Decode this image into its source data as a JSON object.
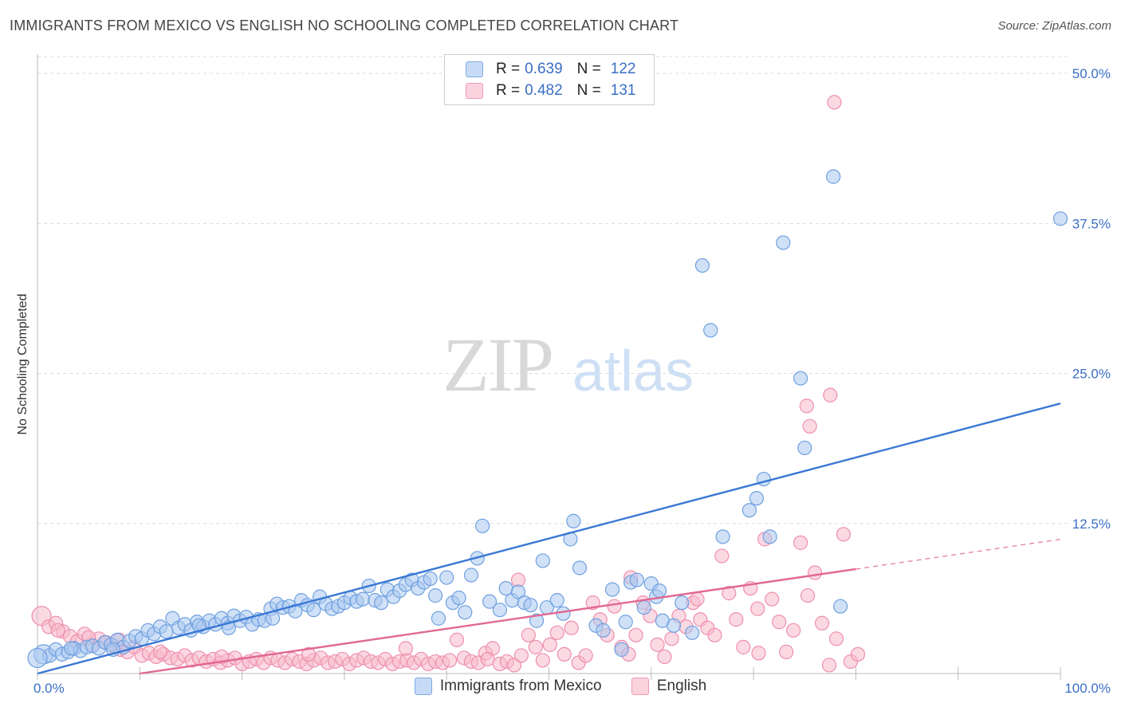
{
  "header": {
    "title": "IMMIGRANTS FROM MEXICO VS ENGLISH NO SCHOOLING COMPLETED CORRELATION CHART",
    "source": "Source: ZipAtlas.com"
  },
  "watermark": {
    "zip": "ZIP",
    "atlas": "atlas"
  },
  "stats_legend": {
    "rows": [
      {
        "r_label": "R =",
        "r_value": "0.639",
        "n_label": "N =",
        "n_value": "122",
        "color": "#a9c8f0"
      },
      {
        "r_label": "R =",
        "r_value": "0.482",
        "n_label": "N =",
        "n_value": "131",
        "color": "#f7b9cc"
      }
    ]
  },
  "chart_data": {
    "type": "scatter",
    "title": "IMMIGRANTS FROM MEXICO VS ENGLISH NO SCHOOLING COMPLETED CORRELATION CHART",
    "ylabel": "No Schooling Completed",
    "xlabel": "",
    "xlim": [
      0,
      100
    ],
    "ylim": [
      0,
      52
    ],
    "x_tick_labels": [
      "0.0%",
      "100.0%"
    ],
    "y_tick_labels": [
      "12.5%",
      "25.0%",
      "37.5%",
      "50.0%"
    ],
    "y_ticks": [
      12.5,
      25,
      37.5,
      50
    ],
    "grid": true,
    "legend_position": "bottom",
    "series": [
      {
        "name": "Immigrants from Mexico",
        "color": "#6fa0e0",
        "fill": "#a9c8f0",
        "trend": {
          "x": [
            0,
            100
          ],
          "y": [
            0,
            22.5
          ],
          "color": "#3a78d4",
          "dashed_beyond": null
        },
        "points": [
          [
            0.6,
            1.6
          ],
          [
            1.2,
            1.5
          ],
          [
            1.8,
            2.0
          ],
          [
            2.4,
            1.6
          ],
          [
            3.0,
            1.8
          ],
          [
            3.6,
            2.1
          ],
          [
            4.2,
            1.9
          ],
          [
            4.8,
            2.2
          ],
          [
            5.4,
            2.3
          ],
          [
            6.0,
            2.1
          ],
          [
            6.6,
            2.6
          ],
          [
            7.2,
            2.4
          ],
          [
            7.8,
            2.8
          ],
          [
            8.4,
            2.2
          ],
          [
            9.0,
            2.7
          ],
          [
            9.6,
            3.1
          ],
          [
            10.2,
            2.9
          ],
          [
            10.8,
            3.6
          ],
          [
            11.4,
            3.3
          ],
          [
            12.0,
            3.9
          ],
          [
            12.6,
            3.5
          ],
          [
            13.2,
            4.6
          ],
          [
            13.8,
            3.8
          ],
          [
            14.4,
            4.1
          ],
          [
            15.0,
            3.6
          ],
          [
            15.6,
            4.3
          ],
          [
            16.2,
            3.9
          ],
          [
            16.8,
            4.4
          ],
          [
            17.4,
            4.1
          ],
          [
            18.0,
            4.6
          ],
          [
            18.6,
            4.2
          ],
          [
            19.2,
            4.8
          ],
          [
            19.8,
            4.4
          ],
          [
            20.4,
            4.7
          ],
          [
            21.0,
            4.1
          ],
          [
            21.6,
            4.5
          ],
          [
            22.2,
            4.4
          ],
          [
            22.8,
            5.4
          ],
          [
            23.4,
            5.8
          ],
          [
            24.0,
            5.5
          ],
          [
            24.6,
            5.6
          ],
          [
            25.2,
            5.2
          ],
          [
            25.8,
            6.1
          ],
          [
            26.4,
            5.7
          ],
          [
            27.0,
            5.3
          ],
          [
            27.6,
            6.4
          ],
          [
            28.2,
            5.8
          ],
          [
            28.8,
            5.4
          ],
          [
            29.4,
            5.6
          ],
          [
            30.0,
            5.9
          ],
          [
            30.6,
            6.3
          ],
          [
            31.2,
            6.0
          ],
          [
            31.8,
            6.2
          ],
          [
            32.4,
            7.3
          ],
          [
            33.0,
            6.1
          ],
          [
            33.6,
            5.9
          ],
          [
            34.2,
            7.0
          ],
          [
            34.8,
            6.4
          ],
          [
            35.4,
            6.9
          ],
          [
            36.0,
            7.4
          ],
          [
            36.6,
            7.8
          ],
          [
            37.2,
            7.1
          ],
          [
            37.8,
            7.6
          ],
          [
            38.4,
            7.9
          ],
          [
            38.9,
            6.5
          ],
          [
            39.2,
            4.6
          ],
          [
            40.0,
            8.0
          ],
          [
            40.6,
            5.9
          ],
          [
            41.2,
            6.3
          ],
          [
            41.8,
            5.1
          ],
          [
            42.4,
            8.2
          ],
          [
            43.0,
            9.6
          ],
          [
            43.5,
            12.3
          ],
          [
            44.2,
            6.0
          ],
          [
            45.2,
            5.3
          ],
          [
            45.8,
            7.1
          ],
          [
            46.4,
            6.1
          ],
          [
            47.0,
            6.8
          ],
          [
            47.6,
            5.9
          ],
          [
            48.2,
            5.7
          ],
          [
            48.8,
            4.4
          ],
          [
            49.4,
            9.4
          ],
          [
            49.8,
            5.5
          ],
          [
            50.8,
            6.1
          ],
          [
            51.4,
            5.0
          ],
          [
            52.1,
            11.2
          ],
          [
            52.4,
            12.7
          ],
          [
            53.0,
            8.8
          ],
          [
            54.6,
            4.0
          ],
          [
            55.3,
            3.6
          ],
          [
            56.2,
            7.0
          ],
          [
            57.1,
            2.0
          ],
          [
            57.5,
            4.3
          ],
          [
            58.0,
            7.6
          ],
          [
            58.6,
            7.8
          ],
          [
            59.3,
            5.5
          ],
          [
            60.0,
            7.5
          ],
          [
            60.5,
            6.4
          ],
          [
            61.1,
            4.4
          ],
          [
            62.2,
            4.0
          ],
          [
            63.0,
            5.9
          ],
          [
            64.0,
            3.4
          ],
          [
            65.0,
            34.0
          ],
          [
            65.8,
            28.6
          ],
          [
            67.0,
            11.4
          ],
          [
            69.6,
            13.6
          ],
          [
            70.3,
            14.6
          ],
          [
            71.0,
            16.2
          ],
          [
            71.6,
            11.4
          ],
          [
            72.9,
            35.9
          ],
          [
            74.6,
            24.6
          ],
          [
            75.0,
            18.8
          ],
          [
            77.8,
            41.4
          ],
          [
            78.5,
            5.6
          ],
          [
            100.0,
            37.9
          ],
          [
            60.8,
            6.9
          ],
          [
            0.0,
            1.3
          ],
          [
            3.3,
            2.1
          ],
          [
            7.4,
            2.0
          ],
          [
            15.8,
            4.0
          ],
          [
            23.0,
            4.6
          ],
          [
            18.7,
            3.8
          ]
        ]
      },
      {
        "name": "English",
        "color": "#ee8fad",
        "fill": "#f7b9cc",
        "trend": {
          "x": [
            10,
            80
          ],
          "y": [
            0,
            8.7
          ],
          "color": "#e06891",
          "dashed_beyond": [
            80,
            100
          ]
        },
        "points": [
          [
            0.4,
            4.8
          ],
          [
            1.1,
            3.9
          ],
          [
            1.8,
            4.2
          ],
          [
            2.5,
            3.5
          ],
          [
            3.2,
            3.1
          ],
          [
            3.9,
            2.7
          ],
          [
            4.6,
            3.3
          ],
          [
            5.3,
            2.4
          ],
          [
            6.0,
            2.9
          ],
          [
            6.7,
            2.6
          ],
          [
            7.4,
            2.3
          ],
          [
            8.1,
            2.0
          ],
          [
            8.8,
            1.8
          ],
          [
            9.5,
            2.2
          ],
          [
            10.2,
            1.5
          ],
          [
            10.9,
            1.7
          ],
          [
            11.6,
            1.4
          ],
          [
            12.3,
            1.6
          ],
          [
            13.0,
            1.3
          ],
          [
            13.7,
            1.2
          ],
          [
            14.4,
            1.5
          ],
          [
            15.1,
            1.1
          ],
          [
            15.8,
            1.3
          ],
          [
            16.5,
            1.0
          ],
          [
            17.2,
            1.2
          ],
          [
            17.9,
            0.9
          ],
          [
            18.6,
            1.1
          ],
          [
            19.3,
            1.3
          ],
          [
            20.0,
            0.8
          ],
          [
            20.7,
            1.0
          ],
          [
            21.4,
            1.2
          ],
          [
            22.1,
            0.9
          ],
          [
            22.8,
            1.3
          ],
          [
            23.5,
            1.1
          ],
          [
            24.2,
            0.9
          ],
          [
            24.9,
            1.2
          ],
          [
            25.6,
            1.0
          ],
          [
            26.3,
            0.8
          ],
          [
            27.0,
            1.1
          ],
          [
            27.7,
            1.3
          ],
          [
            28.4,
            0.9
          ],
          [
            29.1,
            1.0
          ],
          [
            29.8,
            1.2
          ],
          [
            30.5,
            0.8
          ],
          [
            31.2,
            1.1
          ],
          [
            31.9,
            1.3
          ],
          [
            32.6,
            1.0
          ],
          [
            33.3,
            0.9
          ],
          [
            34.0,
            1.2
          ],
          [
            34.7,
            0.8
          ],
          [
            35.4,
            1.0
          ],
          [
            36.1,
            1.1
          ],
          [
            36.8,
            0.9
          ],
          [
            37.5,
            1.2
          ],
          [
            38.2,
            0.8
          ],
          [
            38.9,
            1.0
          ],
          [
            39.6,
            0.9
          ],
          [
            40.3,
            1.1
          ],
          [
            41.0,
            2.8
          ],
          [
            41.7,
            1.3
          ],
          [
            42.4,
            1.0
          ],
          [
            43.1,
            0.9
          ],
          [
            43.8,
            1.7
          ],
          [
            44.5,
            2.1
          ],
          [
            45.2,
            0.8
          ],
          [
            45.9,
            1.0
          ],
          [
            46.6,
            0.7
          ],
          [
            47.3,
            1.5
          ],
          [
            48.0,
            3.2
          ],
          [
            48.7,
            2.2
          ],
          [
            49.4,
            1.1
          ],
          [
            50.1,
            2.4
          ],
          [
            50.8,
            3.4
          ],
          [
            51.5,
            1.6
          ],
          [
            52.2,
            3.8
          ],
          [
            52.9,
            0.9
          ],
          [
            53.6,
            1.5
          ],
          [
            54.3,
            5.9
          ],
          [
            55.0,
            4.5
          ],
          [
            55.7,
            3.2
          ],
          [
            56.4,
            5.6
          ],
          [
            57.1,
            2.2
          ],
          [
            57.8,
            1.6
          ],
          [
            58.5,
            3.2
          ],
          [
            59.2,
            5.9
          ],
          [
            59.9,
            4.8
          ],
          [
            60.6,
            2.4
          ],
          [
            61.3,
            1.4
          ],
          [
            62.0,
            2.9
          ],
          [
            62.7,
            4.8
          ],
          [
            63.4,
            3.9
          ],
          [
            64.1,
            5.9
          ],
          [
            64.8,
            4.5
          ],
          [
            65.5,
            3.8
          ],
          [
            66.2,
            3.2
          ],
          [
            66.9,
            9.8
          ],
          [
            67.6,
            6.7
          ],
          [
            68.3,
            4.5
          ],
          [
            69.0,
            2.2
          ],
          [
            69.7,
            7.1
          ],
          [
            70.4,
            5.4
          ],
          [
            71.1,
            11.2
          ],
          [
            71.8,
            6.2
          ],
          [
            72.5,
            4.3
          ],
          [
            73.2,
            1.8
          ],
          [
            73.9,
            3.6
          ],
          [
            74.6,
            10.9
          ],
          [
            75.3,
            6.5
          ],
          [
            76.0,
            8.4
          ],
          [
            76.7,
            4.2
          ],
          [
            77.4,
            0.7
          ],
          [
            78.1,
            2.9
          ],
          [
            78.8,
            11.6
          ],
          [
            79.5,
            1.0
          ],
          [
            80.2,
            1.6
          ],
          [
            75.5,
            20.6
          ],
          [
            75.2,
            22.3
          ],
          [
            77.5,
            23.2
          ],
          [
            77.9,
            47.6
          ],
          [
            70.5,
            1.7
          ],
          [
            58.0,
            8.0
          ],
          [
            47.0,
            7.8
          ],
          [
            44.0,
            1.2
          ],
          [
            36.0,
            2.1
          ],
          [
            26.5,
            1.6
          ],
          [
            18.0,
            1.4
          ],
          [
            12.0,
            1.8
          ],
          [
            8.0,
            2.8
          ],
          [
            5.0,
            3.0
          ],
          [
            2.0,
            3.6
          ],
          [
            64.5,
            6.2
          ]
        ]
      }
    ]
  }
}
